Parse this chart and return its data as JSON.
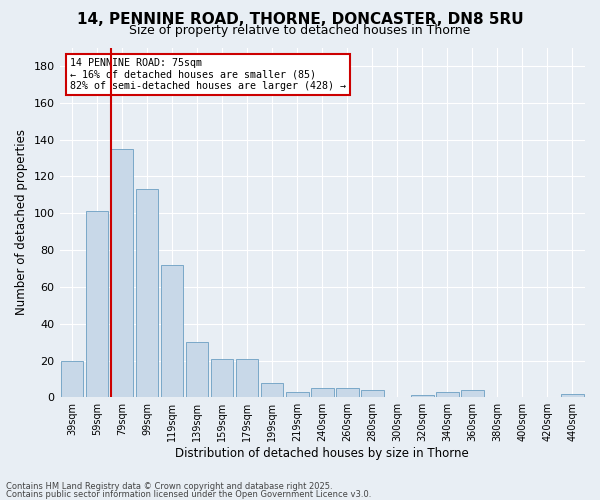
{
  "title_line1": "14, PENNINE ROAD, THORNE, DONCASTER, DN8 5RU",
  "title_line2": "Size of property relative to detached houses in Thorne",
  "xlabel": "Distribution of detached houses by size in Thorne",
  "ylabel": "Number of detached properties",
  "bar_color": "#c8d8e8",
  "bar_edge_color": "#7aa8c8",
  "categories": [
    "39sqm",
    "59sqm",
    "79sqm",
    "99sqm",
    "119sqm",
    "139sqm",
    "159sqm",
    "179sqm",
    "199sqm",
    "219sqm",
    "240sqm",
    "260sqm",
    "280sqm",
    "300sqm",
    "320sqm",
    "340sqm",
    "360sqm",
    "380sqm",
    "400sqm",
    "420sqm",
    "440sqm"
  ],
  "values": [
    20,
    101,
    135,
    113,
    72,
    30,
    21,
    21,
    8,
    3,
    5,
    5,
    4,
    0,
    1,
    3,
    4,
    0,
    0,
    0,
    2
  ],
  "ylim": [
    0,
    190
  ],
  "yticks": [
    0,
    20,
    40,
    60,
    80,
    100,
    120,
    140,
    160,
    180
  ],
  "vline_x": 1.55,
  "vline_color": "#cc0000",
  "annotation_title": "14 PENNINE ROAD: 75sqm",
  "annotation_line1": "← 16% of detached houses are smaller (85)",
  "annotation_line2": "82% of semi-detached houses are larger (428) →",
  "annotation_box_color": "#cc0000",
  "footer_line1": "Contains HM Land Registry data © Crown copyright and database right 2025.",
  "footer_line2": "Contains public sector information licensed under the Open Government Licence v3.0.",
  "bg_color": "#e8eef4",
  "plot_bg_color": "#e8eef4",
  "title1_fontsize": 11,
  "title2_fontsize": 9
}
